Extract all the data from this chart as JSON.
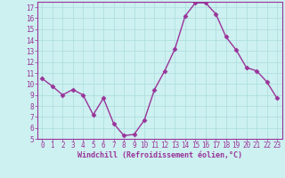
{
  "x": [
    0,
    1,
    2,
    3,
    4,
    5,
    6,
    7,
    8,
    9,
    10,
    11,
    12,
    13,
    14,
    15,
    16,
    17,
    18,
    19,
    20,
    21,
    22,
    23
  ],
  "y": [
    10.5,
    9.8,
    9.0,
    9.5,
    9.0,
    7.2,
    8.7,
    6.4,
    5.3,
    5.4,
    6.7,
    9.5,
    11.2,
    13.2,
    16.2,
    17.4,
    17.4,
    16.4,
    14.3,
    13.1,
    11.5,
    11.2,
    10.2,
    8.7
  ],
  "line_color": "#993399",
  "marker": "D",
  "marker_size": 2.5,
  "xlabel": "Windchill (Refroidissement éolien,°C)",
  "xlim": [
    -0.5,
    23.5
  ],
  "ylim": [
    5,
    17.5
  ],
  "yticks": [
    5,
    6,
    7,
    8,
    9,
    10,
    11,
    12,
    13,
    14,
    15,
    16,
    17
  ],
  "xticks": [
    0,
    1,
    2,
    3,
    4,
    5,
    6,
    7,
    8,
    9,
    10,
    11,
    12,
    13,
    14,
    15,
    16,
    17,
    18,
    19,
    20,
    21,
    22,
    23
  ],
  "background_color": "#cdf0f0",
  "grid_color": "#aadddd",
  "tick_color": "#993399",
  "label_color": "#993399",
  "spine_color": "#993399",
  "font_size_ticks": 5.5,
  "font_size_xlabel": 6.0,
  "line_width": 1.0
}
